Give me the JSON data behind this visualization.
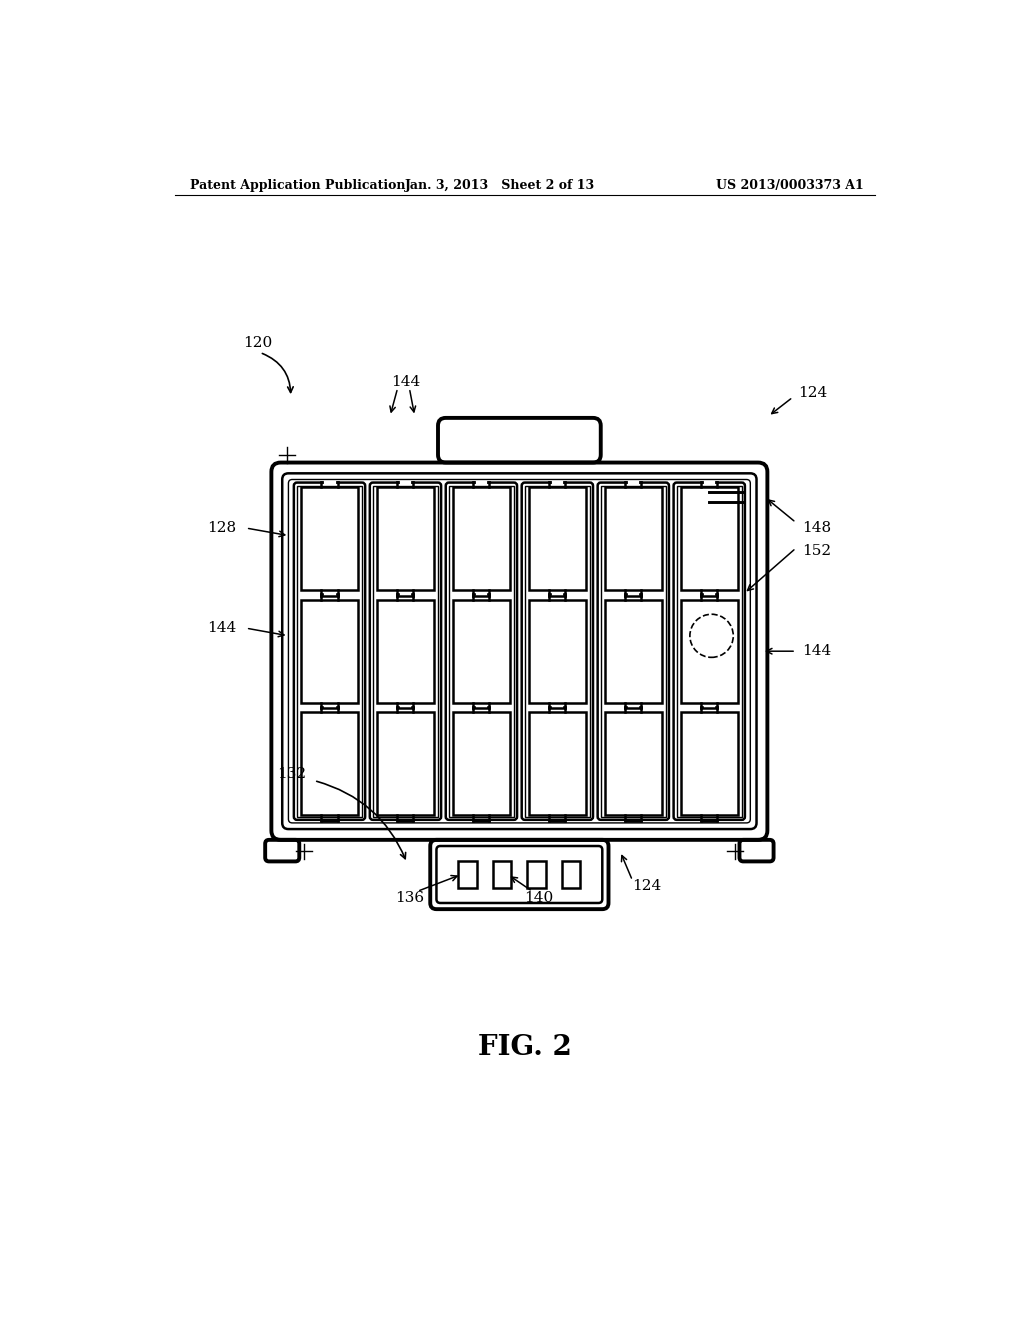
{
  "bg_color": "#ffffff",
  "text_color": "#000000",
  "header_left": "Patent Application Publication",
  "header_center": "Jan. 3, 2013   Sheet 2 of 13",
  "header_right": "US 2013/0003373 A1",
  "fig_label": "FIG. 2",
  "lw_thin": 1.0,
  "lw_med": 1.8,
  "lw_thick": 2.8
}
